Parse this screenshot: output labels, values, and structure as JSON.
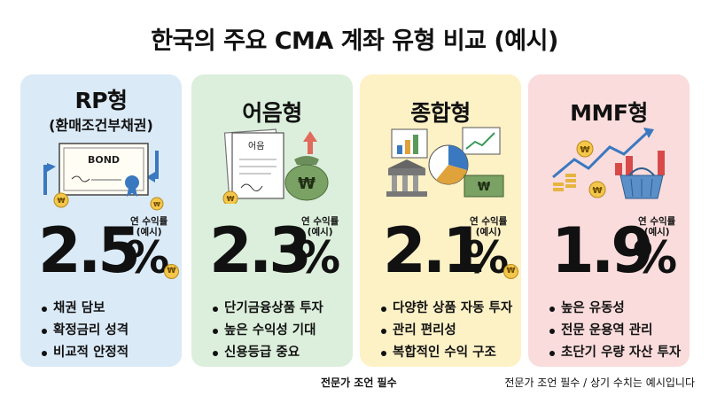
{
  "title": "한국의 주요 CMA 계좌 유형 비교 (예시)",
  "rate_label_line1": "연 수익률",
  "rate_label_line2": "(예시)",
  "won_symbol": "₩",
  "cards": [
    {
      "name": "RP형",
      "subtitle": "(환매조건부채권)",
      "illustration_text": "BOND",
      "rate": "2.5",
      "percent": "%",
      "bg_color": "#dbeaf7",
      "bullets": [
        "채권 담보",
        "확정금리 성격",
        "비교적 안정적"
      ]
    },
    {
      "name": "어음형",
      "illustration_text": "어음",
      "rate": "2.3",
      "percent": "%",
      "bg_color": "#dcefdc",
      "bullets": [
        "단기금융상품 투자",
        "높은 수익성 기대",
        "신용등급 중요"
      ]
    },
    {
      "name": "종합형",
      "rate": "2.1",
      "percent": "%",
      "bg_color": "#fdf1c6",
      "bullets": [
        "다양한 상품 자동 투자",
        "관리 편리성",
        "복합적인 수익 구조"
      ]
    },
    {
      "name": "MMF형",
      "rate": "1.9",
      "percent": "%",
      "bg_color": "#fadcdc",
      "bullets": [
        "높은 유동성",
        "전문 운용역 관리",
        "초단기 우량 자산 투자"
      ]
    }
  ],
  "footer_center": "전문가 조언 필수",
  "footer_right": "전문가 조언 필수 / 상기 수치는 예시입니다"
}
